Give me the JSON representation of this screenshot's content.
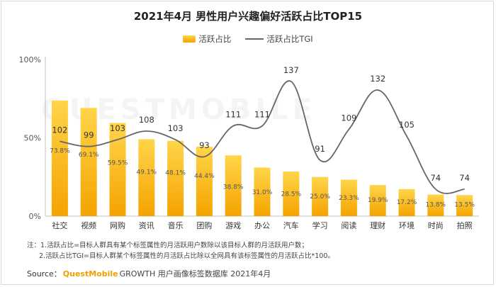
{
  "title": "2021年4月 男性用户兴趣偏好活跃占比TOP15",
  "legend": {
    "bar_label": "活跃占比",
    "line_label": "活跃占比TGI"
  },
  "chart_data": {
    "type": "bar",
    "categories": [
      "社交",
      "视频",
      "网购",
      "资讯",
      "音乐",
      "团购",
      "游戏",
      "办公",
      "汽车",
      "学习",
      "阅读",
      "理财",
      "环境",
      "时尚",
      "拍照"
    ],
    "series": [
      {
        "name": "活跃占比",
        "type": "bar",
        "values": [
          73.8,
          69.1,
          59.5,
          49.1,
          48.1,
          44.4,
          38.8,
          31.0,
          28.5,
          25.0,
          23.3,
          19.9,
          17.2,
          13.8,
          13.5
        ],
        "value_labels": [
          "73.8%",
          "69.1%",
          "59.5%",
          "49.1%",
          "48.1%",
          "44.4%",
          "38.8%",
          "31.0%",
          "28.5%",
          "25.0%",
          "23.3%",
          "19.9%",
          "17.2%",
          "13.8%",
          "13.5%"
        ]
      },
      {
        "name": "活跃占比TGI",
        "type": "line",
        "values": [
          102,
          99,
          103,
          108,
          103,
          93,
          111,
          111,
          137,
          91,
          109,
          132,
          105,
          74,
          74
        ]
      }
    ],
    "y_ticks": [
      "0%",
      "50%",
      "100%"
    ],
    "ylim": [
      0,
      100
    ],
    "legend_position": "top-center",
    "grid": false,
    "colors": {
      "bar_top": "#ffd54a",
      "bar_bottom": "#f5a300",
      "line": "#666666",
      "axis": "#bfbfbf"
    }
  },
  "notes": {
    "line1": "注：1.活跃占比=目标人群具有某个标签属性的月活跃用户数除以该目标人群的月活跃用户数；",
    "line2": "2.活跃占比TGI=目标人群某个标签属性的月活跃占比除以全网具有该标签属性的月活跃占比*100。"
  },
  "source": {
    "prefix": "Source：",
    "brand": "QuestMobile",
    "rest": "GROWTH 用户画像标签数据库 2021年4月"
  },
  "watermark": "QUESTMOBILE"
}
